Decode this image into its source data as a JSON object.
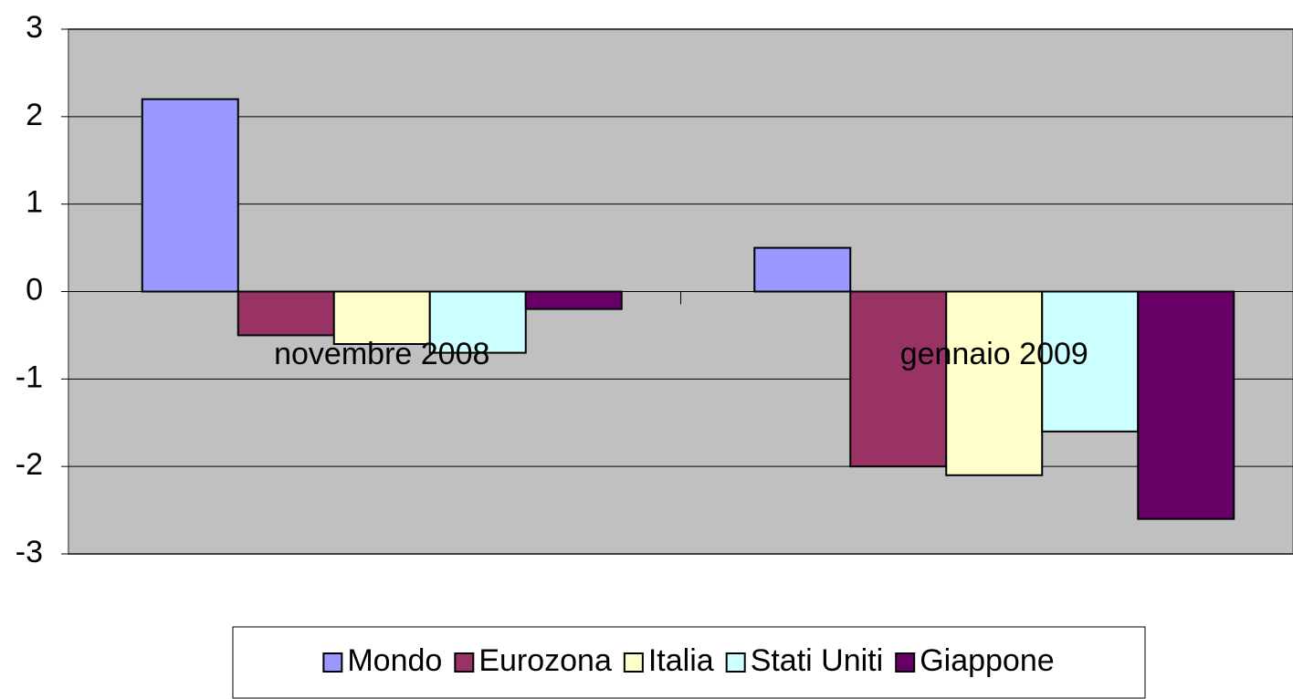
{
  "chart_data": {
    "type": "bar",
    "categories": [
      "novembre 2008",
      "gennaio 2009"
    ],
    "series": [
      {
        "name": "Mondo",
        "color": "#9999ff",
        "values": [
          2.2,
          0.5
        ]
      },
      {
        "name": "Eurozona",
        "color": "#993366",
        "values": [
          -0.5,
          -2.0
        ]
      },
      {
        "name": "Italia",
        "color": "#ffffcc",
        "values": [
          -0.6,
          -2.1
        ]
      },
      {
        "name": "Stati Uniti",
        "color": "#ccffff",
        "values": [
          -0.7,
          -1.6
        ]
      },
      {
        "name": "Giappone",
        "color": "#660066",
        "values": [
          -0.2,
          -2.6
        ]
      }
    ],
    "ylim": [
      -3,
      3
    ],
    "yticks": [
      -3,
      -2,
      -1,
      0,
      1,
      2,
      3
    ],
    "grid": true,
    "plot_background": "#c0c0c0",
    "legend": "bottom"
  }
}
